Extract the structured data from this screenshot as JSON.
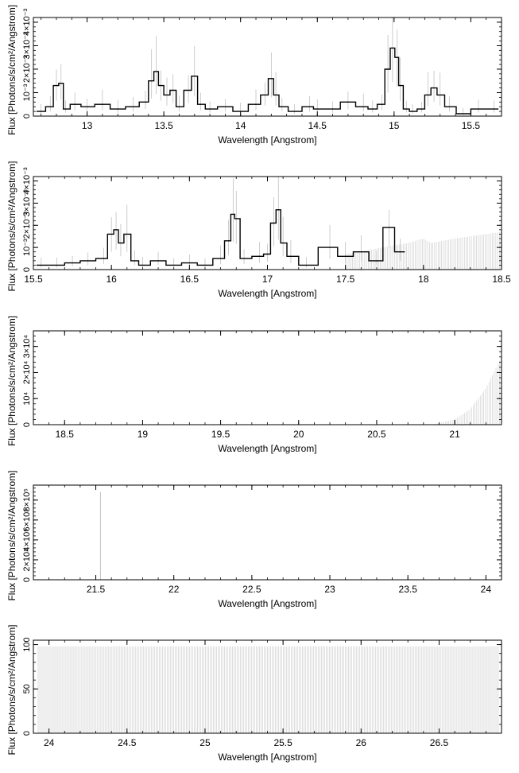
{
  "chart_data": [
    {
      "type": "line",
      "xlabel": "Wavelength [Angstrom]",
      "ylabel": "Flux [Photons/s/cm²/Angstrom]",
      "xlim": [
        12.65,
        15.7
      ],
      "ylim": [
        0,
        0.0042
      ],
      "xticks": [
        13,
        13.5,
        14,
        14.5,
        15,
        15.5
      ],
      "yticks": [
        0,
        0.001,
        0.002,
        0.003,
        0.004
      ],
      "ytick_labels": [
        "0",
        "10⁻³",
        "2×10⁻³",
        "3×10⁻³",
        "4×10⁻³"
      ],
      "grid": false,
      "series": [
        {
          "style": "step-with-errorbars",
          "x": [
            12.7,
            12.76,
            12.8,
            12.83,
            12.86,
            12.92,
            13.0,
            13.1,
            13.2,
            13.3,
            13.38,
            13.42,
            13.45,
            13.48,
            13.52,
            13.56,
            13.6,
            13.66,
            13.7,
            13.74,
            13.8,
            13.9,
            14.0,
            14.1,
            14.16,
            14.2,
            14.23,
            14.27,
            14.35,
            14.45,
            14.5,
            14.6,
            14.7,
            14.8,
            14.86,
            14.92,
            14.96,
            14.99,
            15.02,
            15.04,
            15.08,
            15.12,
            15.18,
            15.22,
            15.26,
            15.3,
            15.36,
            15.45,
            15.55,
            15.65
          ],
          "y": [
            0.0002,
            0.0004,
            0.0013,
            0.0014,
            0.0003,
            0.0005,
            0.0004,
            0.0005,
            0.0003,
            0.0004,
            0.0006,
            0.0015,
            0.0019,
            0.0013,
            0.0009,
            0.0011,
            0.0004,
            0.0011,
            0.0017,
            0.0005,
            0.0003,
            0.0004,
            0.0002,
            0.0005,
            0.0009,
            0.0016,
            0.0009,
            0.0004,
            0.0002,
            0.0004,
            0.0003,
            0.0003,
            0.0006,
            0.0004,
            0.0003,
            0.0005,
            0.002,
            0.0029,
            0.0025,
            0.0013,
            0.0003,
            0.0002,
            0.0003,
            0.0009,
            0.0012,
            0.0009,
            0.0004,
            0.0001,
            0.0003,
            0.0003
          ]
        }
      ]
    },
    {
      "type": "line",
      "xlabel": "Wavelength [Angstrom]",
      "ylabel": "Flux [Photons/s/cm²/Angstrom]",
      "xlim": [
        15.5,
        18.5
      ],
      "ylim": [
        0,
        0.0042
      ],
      "xticks": [
        15.5,
        16,
        16.5,
        17,
        17.5,
        18,
        18.5
      ],
      "yticks": [
        0,
        0.001,
        0.002,
        0.003,
        0.004
      ],
      "ytick_labels": [
        "0",
        "10⁻³",
        "2×10⁻³",
        "3×10⁻³",
        "4×10⁻³"
      ],
      "grid": false,
      "series": [
        {
          "style": "step-with-errorbars",
          "x": [
            15.55,
            15.65,
            15.75,
            15.85,
            15.95,
            16.0,
            16.03,
            16.06,
            16.1,
            16.15,
            16.2,
            16.3,
            16.4,
            16.5,
            16.6,
            16.7,
            16.75,
            16.78,
            16.8,
            16.85,
            16.95,
            17.0,
            17.04,
            17.07,
            17.1,
            17.15,
            17.25,
            17.4,
            17.5,
            17.6,
            17.7,
            17.78,
            17.85
          ],
          "y": [
            0.0002,
            0.0002,
            0.0003,
            0.0004,
            0.0005,
            0.0016,
            0.0018,
            0.0012,
            0.0016,
            0.0004,
            0.0002,
            0.0004,
            0.0002,
            0.0003,
            0.0002,
            0.0005,
            0.0013,
            0.0025,
            0.0023,
            0.0005,
            0.0006,
            0.0007,
            0.0021,
            0.0027,
            0.0012,
            0.0006,
            0.0002,
            0.001,
            0.0006,
            0.0008,
            0.0004,
            0.0019,
            0.0008
          ]
        }
      ],
      "errorbar_envelope": {
        "x": [
          17.5,
          17.9,
          18.0,
          18.05,
          18.2,
          18.5
        ],
        "y": [
          0.0007,
          0.0012,
          0.0014,
          0.0012,
          0.0014,
          0.0017
        ]
      }
    },
    {
      "type": "line",
      "xlabel": "Wavelength [Angstrom]",
      "ylabel": "Flux [Photons/s/cm²/Angstrom]",
      "xlim": [
        18.3,
        21.3
      ],
      "ylim": [
        0,
        36000
      ],
      "xticks": [
        18.5,
        19,
        19.5,
        20,
        20.5,
        21
      ],
      "yticks": [
        0,
        10000,
        20000,
        30000
      ],
      "ytick_labels": [
        "0",
        "10⁴",
        "2×10⁴",
        "3×10⁴"
      ],
      "grid": false,
      "series": [],
      "errorbar_envelope": {
        "x": [
          20.85,
          21.0,
          21.1,
          21.2,
          21.3
        ],
        "y": [
          0,
          2000,
          6000,
          14000,
          26000
        ]
      }
    },
    {
      "type": "line",
      "xlabel": "Wavelength [Angstrom]",
      "ylabel": "Flux [Photons/s/cm²/Angstrom]",
      "xlim": [
        21.1,
        24.1
      ],
      "ylim": [
        0,
        950000
      ],
      "xticks": [
        21.5,
        22,
        22.5,
        23,
        23.5,
        24
      ],
      "yticks": [
        0,
        200000,
        400000,
        600000,
        800000
      ],
      "ytick_labels": [
        "0",
        "2×10⁵",
        "4×10⁵",
        "6×10⁵",
        "8×10⁵"
      ],
      "grid": false,
      "series": [],
      "spike": {
        "x": 21.53,
        "y": 880000
      }
    },
    {
      "type": "line",
      "xlabel": "Wavelength [Angstrom]",
      "ylabel": "Flux [Photons/s/cm²/Angstrom]",
      "xlim": [
        23.9,
        26.9
      ],
      "ylim": [
        0,
        105
      ],
      "xticks": [
        24,
        24.5,
        25,
        25.5,
        26,
        26.5
      ],
      "yticks": [
        0,
        50,
        100
      ],
      "ytick_labels": [
        "0",
        "50",
        "100"
      ],
      "grid": false,
      "series": [],
      "uniform_errorbars": {
        "value": 98,
        "count": 290
      }
    }
  ]
}
